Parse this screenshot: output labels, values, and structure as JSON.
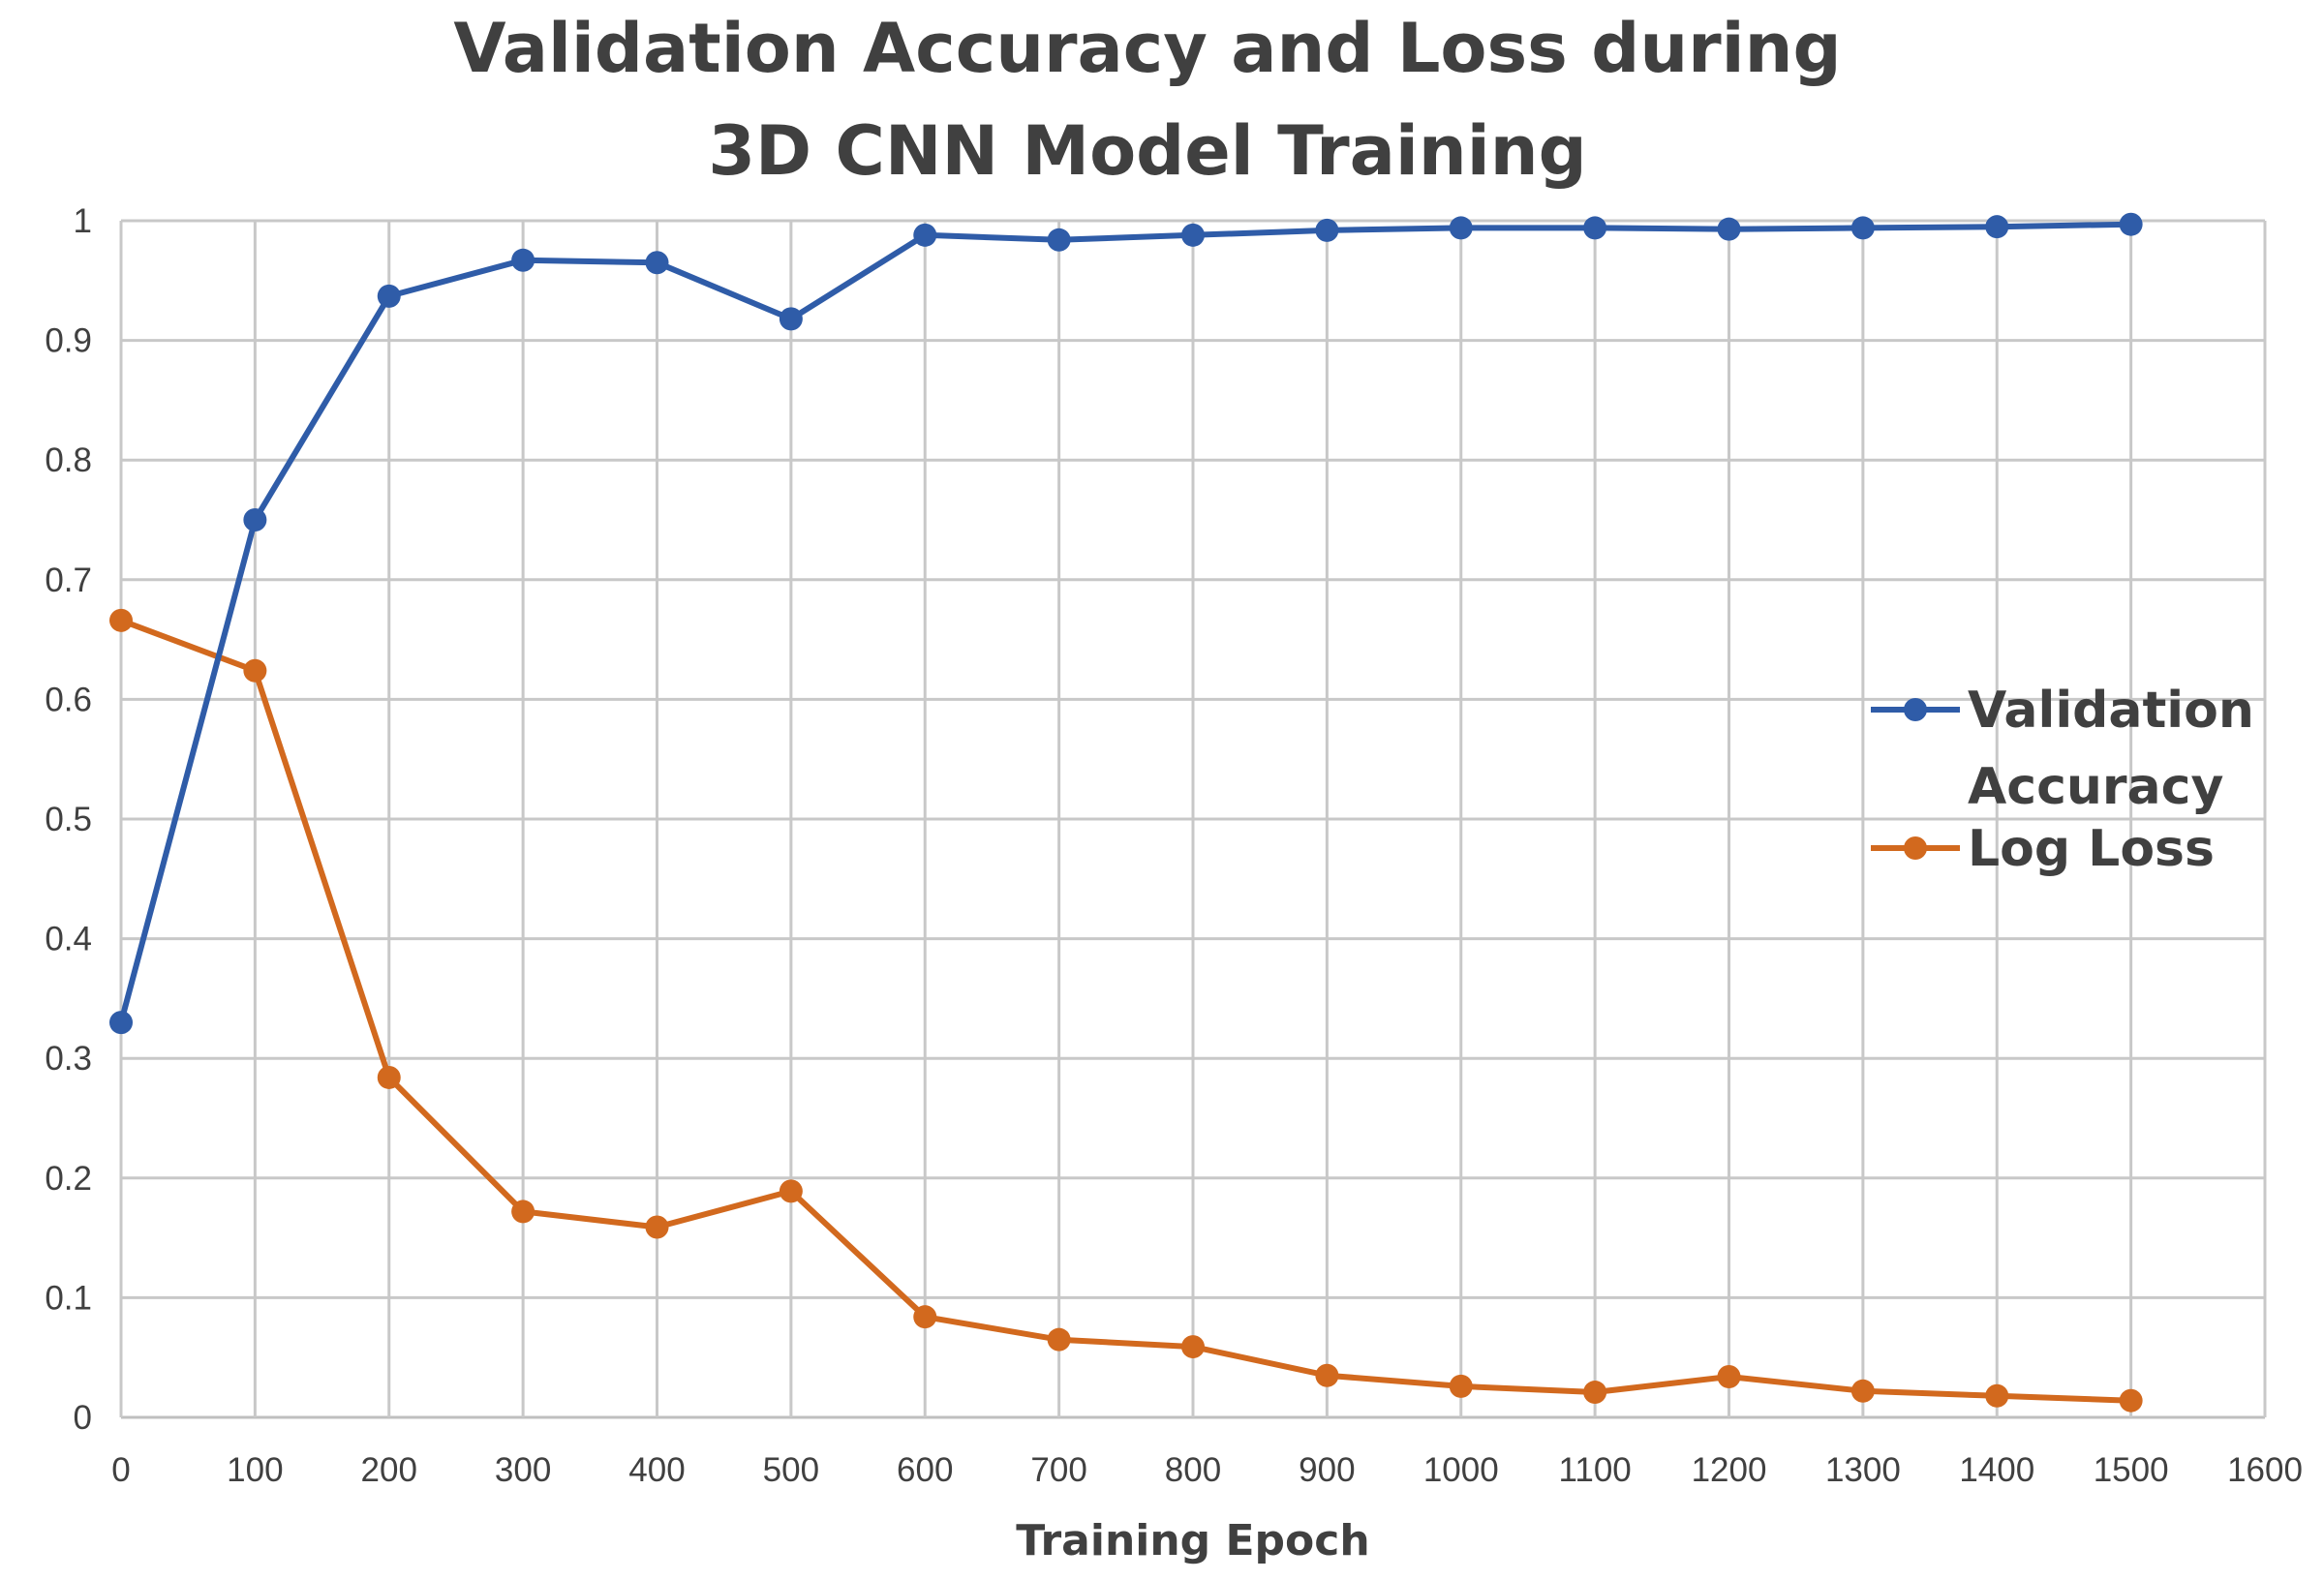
{
  "chart_data": {
    "type": "line",
    "title_lines": [
      "Validation Accuracy and Loss during",
      "3D CNN Model Training"
    ],
    "xlabel": "Training Epoch",
    "ylabel": "",
    "xlim": [
      0,
      1600
    ],
    "ylim": [
      0,
      1
    ],
    "x_ticks": [
      "0",
      "100",
      "200",
      "300",
      "400",
      "500",
      "600",
      "700",
      "800",
      "900",
      "1000",
      "1100",
      "1200",
      "1300",
      "1400",
      "1500",
      "1600"
    ],
    "y_ticks": [
      "0",
      "0.1",
      "0.2",
      "0.3",
      "0.4",
      "0.5",
      "0.6",
      "0.7",
      "0.8",
      "0.9",
      "1"
    ],
    "grid": true,
    "legend_position": "right",
    "x": [
      0,
      100,
      200,
      300,
      400,
      500,
      600,
      700,
      800,
      900,
      1000,
      1100,
      1200,
      1300,
      1400,
      1500
    ],
    "series": [
      {
        "name": "Validation Accuracy",
        "legend_lines": [
          "Validation",
          "Accuracy"
        ],
        "color": "#2f5ca8",
        "values": [
          0.33,
          0.75,
          0.937,
          0.967,
          0.965,
          0.918,
          0.988,
          0.984,
          0.988,
          0.992,
          0.994,
          0.994,
          0.993,
          0.994,
          0.995,
          0.997
        ]
      },
      {
        "name": "Log Loss",
        "legend_lines": [
          "Log Loss"
        ],
        "color": "#d2691e",
        "values": [
          0.666,
          0.624,
          0.284,
          0.172,
          0.159,
          0.189,
          0.084,
          0.065,
          0.059,
          0.035,
          0.026,
          0.021,
          0.034,
          0.022,
          0.018,
          0.014
        ]
      }
    ]
  }
}
